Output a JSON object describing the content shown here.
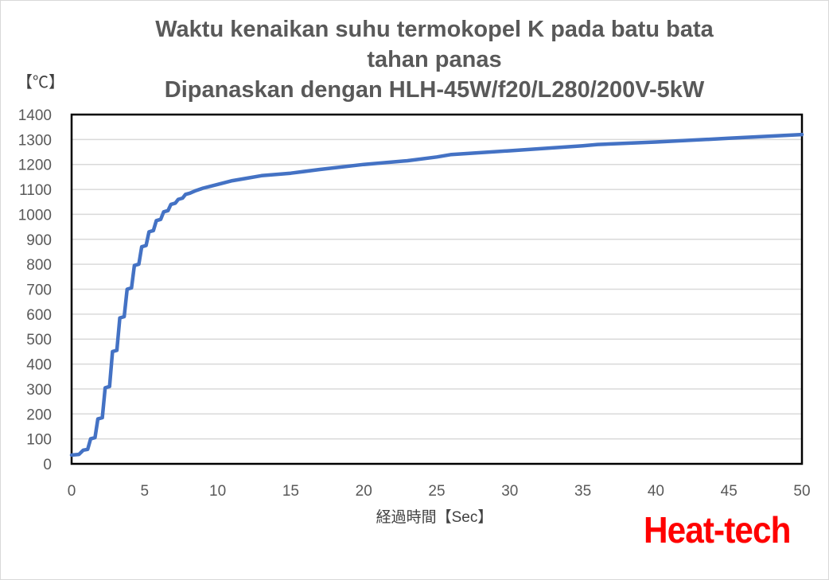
{
  "chart_data": {
    "type": "line",
    "title": [
      "Waktu kenaikan suhu termokopel K pada batu bata",
      "tahan panas",
      "Dipanaskan dengan HLH-45W/f20/L280/200V-5kW"
    ],
    "ylabel": "【℃】",
    "xlabel": "経過時間【Sec】",
    "xlim": [
      0,
      50
    ],
    "ylim": [
      0,
      1400
    ],
    "xticks": [
      0,
      5,
      10,
      15,
      20,
      25,
      30,
      35,
      40,
      45,
      50
    ],
    "yticks": [
      0,
      100,
      200,
      300,
      400,
      500,
      600,
      700,
      800,
      900,
      1000,
      1100,
      1200,
      1300,
      1400
    ],
    "grid": "horizontal",
    "legend": "none",
    "line_color": "#4472c4",
    "series": [
      {
        "x": [
          0,
          0.5,
          0.8,
          1.1,
          1.3,
          1.6,
          1.8,
          2.1,
          2.3,
          2.6,
          2.8,
          3.1,
          3.3,
          3.6,
          3.8,
          4.1,
          4.3,
          4.6,
          4.8,
          5.1,
          5.3,
          5.6,
          5.8,
          6.1,
          6.3,
          6.6,
          6.8,
          7.1,
          7.3,
          7.6,
          7.8,
          8.1,
          8.5,
          9,
          10,
          11,
          12,
          13,
          15,
          17,
          20,
          23,
          25,
          26,
          30,
          35,
          36,
          40,
          45,
          50
        ],
        "y": [
          35,
          38,
          55,
          58,
          100,
          105,
          180,
          185,
          305,
          310,
          450,
          455,
          585,
          590,
          700,
          705,
          795,
          800,
          870,
          875,
          930,
          935,
          975,
          980,
          1010,
          1015,
          1040,
          1045,
          1060,
          1065,
          1080,
          1085,
          1095,
          1105,
          1120,
          1135,
          1145,
          1155,
          1165,
          1180,
          1200,
          1215,
          1230,
          1240,
          1255,
          1275,
          1280,
          1290,
          1305,
          1320
        ]
      }
    ]
  },
  "logo": "Heat-tech"
}
